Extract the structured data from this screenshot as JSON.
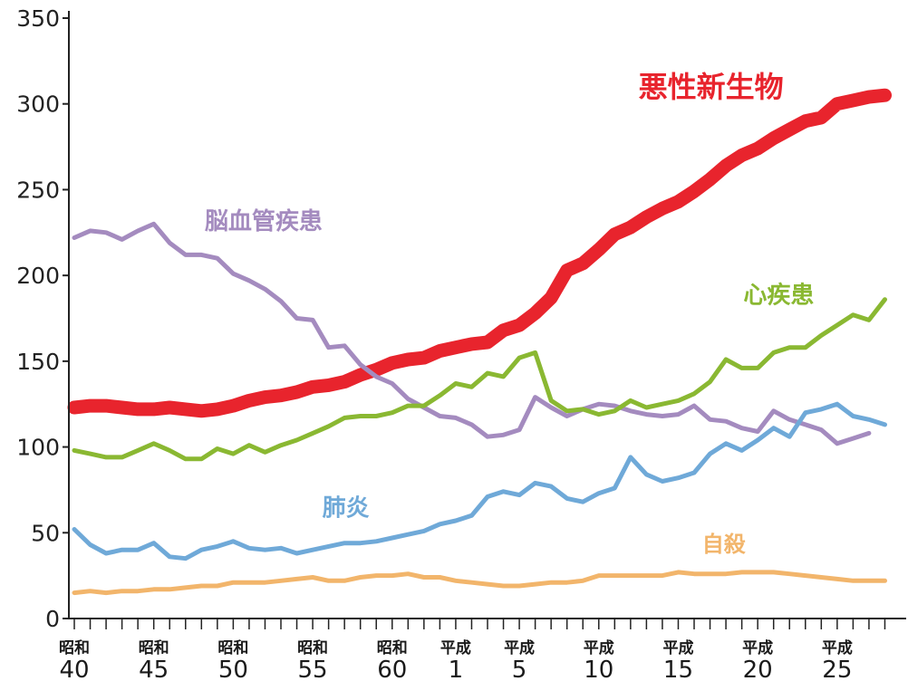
{
  "chart_data": {
    "type": "line",
    "title": "",
    "xlabel": "",
    "ylabel": "",
    "ylim": [
      0,
      350
    ],
    "yticks": [
      "0",
      "50",
      "100",
      "150",
      "200",
      "250",
      "300",
      "350"
    ],
    "xlim": [
      1965,
      2017
    ],
    "xticks": [
      {
        "year": 1965,
        "era": "昭和",
        "num": "40"
      },
      {
        "year": 1970,
        "era": "昭和",
        "num": "45"
      },
      {
        "year": 1975,
        "era": "昭和",
        "num": "50"
      },
      {
        "year": 1980,
        "era": "昭和",
        "num": "55"
      },
      {
        "year": 1985,
        "era": "昭和",
        "num": "60"
      },
      {
        "year": 1989,
        "era": "平成",
        "num": "1"
      },
      {
        "year": 1993,
        "era": "平成",
        "num": "5"
      },
      {
        "year": 1998,
        "era": "平成",
        "num": "10"
      },
      {
        "year": 2003,
        "era": "平成",
        "num": "15"
      },
      {
        "year": 2008,
        "era": "平成",
        "num": "20"
      },
      {
        "year": 2013,
        "era": "平成",
        "num": "25"
      }
    ],
    "series": [
      {
        "name": "悪性新生物",
        "color": "#e8242d",
        "width": 15,
        "label_year": 2000.5,
        "label_value": 304,
        "label_size": 32,
        "points": [
          [
            1965,
            123
          ],
          [
            1966,
            124
          ],
          [
            1967,
            124
          ],
          [
            1968,
            123
          ],
          [
            1969,
            122
          ],
          [
            1970,
            122
          ],
          [
            1971,
            123
          ],
          [
            1972,
            122
          ],
          [
            1973,
            121
          ],
          [
            1974,
            122
          ],
          [
            1975,
            124
          ],
          [
            1976,
            127
          ],
          [
            1977,
            129
          ],
          [
            1978,
            130
          ],
          [
            1979,
            132
          ],
          [
            1980,
            135
          ],
          [
            1981,
            136
          ],
          [
            1982,
            138
          ],
          [
            1983,
            142
          ],
          [
            1984,
            145
          ],
          [
            1985,
            149
          ],
          [
            1986,
            151
          ],
          [
            1987,
            152
          ],
          [
            1988,
            156
          ],
          [
            1989,
            158
          ],
          [
            1990,
            160
          ],
          [
            1991,
            161
          ],
          [
            1992,
            168
          ],
          [
            1993,
            171
          ],
          [
            1994,
            178
          ],
          [
            1995,
            187
          ],
          [
            1996,
            203
          ],
          [
            1997,
            207
          ],
          [
            1998,
            215
          ],
          [
            1999,
            224
          ],
          [
            2000,
            228
          ],
          [
            2001,
            234
          ],
          [
            2002,
            239
          ],
          [
            2003,
            243
          ],
          [
            2004,
            249
          ],
          [
            2005,
            256
          ],
          [
            2006,
            264
          ],
          [
            2007,
            270
          ],
          [
            2008,
            274
          ],
          [
            2009,
            280
          ],
          [
            2010,
            285
          ],
          [
            2011,
            290
          ],
          [
            2012,
            292
          ],
          [
            2013,
            300
          ],
          [
            2014,
            302
          ],
          [
            2015,
            304
          ],
          [
            2016,
            305
          ]
        ]
      },
      {
        "name": "脳血管疾患",
        "color": "#a48bbf",
        "width": 5,
        "label_year": 1973.2,
        "label_value": 227,
        "label_size": 26,
        "points": [
          [
            1965,
            222
          ],
          [
            1966,
            226
          ],
          [
            1967,
            225
          ],
          [
            1968,
            221
          ],
          [
            1969,
            226
          ],
          [
            1970,
            230
          ],
          [
            1971,
            219
          ],
          [
            1972,
            212
          ],
          [
            1973,
            212
          ],
          [
            1974,
            210
          ],
          [
            1975,
            201
          ],
          [
            1976,
            197
          ],
          [
            1977,
            192
          ],
          [
            1978,
            185
          ],
          [
            1979,
            175
          ],
          [
            1980,
            174
          ],
          [
            1981,
            158
          ],
          [
            1982,
            159
          ],
          [
            1983,
            148
          ],
          [
            1984,
            141
          ],
          [
            1985,
            137
          ],
          [
            1986,
            128
          ],
          [
            1987,
            123
          ],
          [
            1988,
            118
          ],
          [
            1989,
            117
          ],
          [
            1990,
            113
          ],
          [
            1991,
            106
          ],
          [
            1992,
            107
          ],
          [
            1993,
            110
          ],
          [
            1994,
            129
          ],
          [
            1995,
            123
          ],
          [
            1996,
            118
          ],
          [
            1997,
            122
          ],
          [
            1998,
            125
          ],
          [
            1999,
            124
          ],
          [
            2000,
            121
          ],
          [
            2001,
            119
          ],
          [
            2002,
            118
          ],
          [
            2003,
            119
          ],
          [
            2004,
            124
          ],
          [
            2005,
            116
          ],
          [
            2006,
            115
          ],
          [
            2007,
            111
          ],
          [
            2008,
            109
          ],
          [
            2009,
            121
          ],
          [
            2010,
            116
          ],
          [
            2011,
            113
          ],
          [
            2012,
            110
          ],
          [
            2013,
            102
          ],
          [
            2014,
            105
          ],
          [
            2015,
            108
          ]
        ]
      },
      {
        "name": "心疾患",
        "color": "#8ab832",
        "width": 5,
        "label_year": 2007.1,
        "label_value": 184,
        "label_size": 26,
        "points": [
          [
            1965,
            98
          ],
          [
            1966,
            96
          ],
          [
            1967,
            94
          ],
          [
            1968,
            94
          ],
          [
            1969,
            98
          ],
          [
            1970,
            102
          ],
          [
            1971,
            98
          ],
          [
            1972,
            93
          ],
          [
            1973,
            93
          ],
          [
            1974,
            99
          ],
          [
            1975,
            96
          ],
          [
            1976,
            101
          ],
          [
            1977,
            97
          ],
          [
            1978,
            101
          ],
          [
            1979,
            104
          ],
          [
            1980,
            108
          ],
          [
            1981,
            112
          ],
          [
            1982,
            117
          ],
          [
            1983,
            118
          ],
          [
            1984,
            118
          ],
          [
            1985,
            120
          ],
          [
            1986,
            124
          ],
          [
            1987,
            124
          ],
          [
            1988,
            130
          ],
          [
            1989,
            137
          ],
          [
            1990,
            135
          ],
          [
            1991,
            143
          ],
          [
            1992,
            141
          ],
          [
            1993,
            152
          ],
          [
            1994,
            155
          ],
          [
            1995,
            127
          ],
          [
            1996,
            121
          ],
          [
            1997,
            122
          ],
          [
            1998,
            119
          ],
          [
            1999,
            121
          ],
          [
            2000,
            127
          ],
          [
            2001,
            123
          ],
          [
            2002,
            125
          ],
          [
            2003,
            127
          ],
          [
            2004,
            131
          ],
          [
            2005,
            138
          ],
          [
            2006,
            151
          ],
          [
            2007,
            146
          ],
          [
            2008,
            146
          ],
          [
            2009,
            155
          ],
          [
            2010,
            158
          ],
          [
            2011,
            158
          ],
          [
            2012,
            165
          ],
          [
            2013,
            171
          ],
          [
            2014,
            177
          ],
          [
            2015,
            174
          ],
          [
            2016,
            186
          ]
        ]
      },
      {
        "name": "肺炎",
        "color": "#6fa9d8",
        "width": 5,
        "label_year": 1980.6,
        "label_value": 60,
        "label_size": 26,
        "points": [
          [
            1965,
            52
          ],
          [
            1966,
            43
          ],
          [
            1967,
            38
          ],
          [
            1968,
            40
          ],
          [
            1969,
            40
          ],
          [
            1970,
            44
          ],
          [
            1971,
            36
          ],
          [
            1972,
            35
          ],
          [
            1973,
            40
          ],
          [
            1974,
            42
          ],
          [
            1975,
            45
          ],
          [
            1976,
            41
          ],
          [
            1977,
            40
          ],
          [
            1978,
            41
          ],
          [
            1979,
            38
          ],
          [
            1980,
            40
          ],
          [
            1981,
            42
          ],
          [
            1982,
            44
          ],
          [
            1983,
            44
          ],
          [
            1984,
            45
          ],
          [
            1985,
            47
          ],
          [
            1986,
            49
          ],
          [
            1987,
            51
          ],
          [
            1988,
            55
          ],
          [
            1989,
            57
          ],
          [
            1990,
            60
          ],
          [
            1991,
            71
          ],
          [
            1992,
            74
          ],
          [
            1993,
            72
          ],
          [
            1994,
            79
          ],
          [
            1995,
            77
          ],
          [
            1996,
            70
          ],
          [
            1997,
            68
          ],
          [
            1998,
            73
          ],
          [
            1999,
            76
          ],
          [
            2000,
            94
          ],
          [
            2001,
            84
          ],
          [
            2002,
            80
          ],
          [
            2003,
            82
          ],
          [
            2004,
            85
          ],
          [
            2005,
            96
          ],
          [
            2006,
            102
          ],
          [
            2007,
            98
          ],
          [
            2008,
            104
          ],
          [
            2009,
            111
          ],
          [
            2010,
            106
          ],
          [
            2011,
            120
          ],
          [
            2012,
            122
          ],
          [
            2013,
            125
          ],
          [
            2014,
            118
          ],
          [
            2015,
            116
          ],
          [
            2016,
            113
          ]
        ]
      },
      {
        "name": "自殺",
        "color": "#f2b56b",
        "width": 5,
        "label_year": 2004.5,
        "label_value": 39,
        "label_size": 24,
        "points": [
          [
            1965,
            15
          ],
          [
            1966,
            16
          ],
          [
            1967,
            15
          ],
          [
            1968,
            16
          ],
          [
            1969,
            16
          ],
          [
            1970,
            17
          ],
          [
            1971,
            17
          ],
          [
            1972,
            18
          ],
          [
            1973,
            19
          ],
          [
            1974,
            19
          ],
          [
            1975,
            21
          ],
          [
            1976,
            21
          ],
          [
            1977,
            21
          ],
          [
            1978,
            22
          ],
          [
            1979,
            23
          ],
          [
            1980,
            24
          ],
          [
            1981,
            22
          ],
          [
            1982,
            22
          ],
          [
            1983,
            24
          ],
          [
            1984,
            25
          ],
          [
            1985,
            25
          ],
          [
            1986,
            26
          ],
          [
            1987,
            24
          ],
          [
            1988,
            24
          ],
          [
            1989,
            22
          ],
          [
            1990,
            21
          ],
          [
            1991,
            20
          ],
          [
            1992,
            19
          ],
          [
            1993,
            19
          ],
          [
            1994,
            20
          ],
          [
            1995,
            21
          ],
          [
            1996,
            21
          ],
          [
            1997,
            22
          ],
          [
            1998,
            25
          ],
          [
            1999,
            25
          ],
          [
            2000,
            25
          ],
          [
            2001,
            25
          ],
          [
            2002,
            25
          ],
          [
            2003,
            27
          ],
          [
            2004,
            26
          ],
          [
            2005,
            26
          ],
          [
            2006,
            26
          ],
          [
            2007,
            27
          ],
          [
            2008,
            27
          ],
          [
            2009,
            27
          ],
          [
            2010,
            26
          ],
          [
            2011,
            25
          ],
          [
            2012,
            24
          ],
          [
            2013,
            23
          ],
          [
            2014,
            22
          ],
          [
            2015,
            22
          ],
          [
            2016,
            22
          ]
        ]
      }
    ]
  }
}
